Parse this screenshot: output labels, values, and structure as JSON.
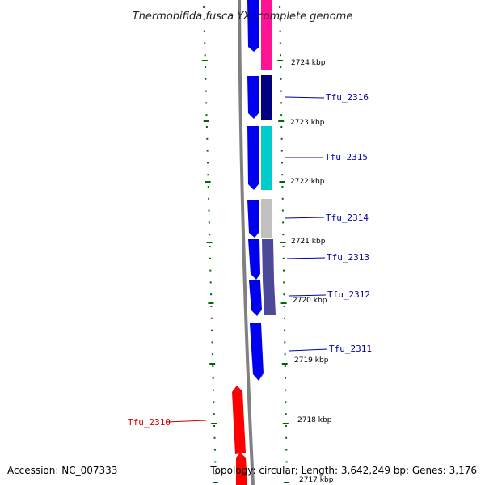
{
  "title": "Thermobifida fusca YX, complete genome",
  "accession": "Accession: NC_007333",
  "summary": "Topology: circular; Length: 3,642,249 bp; Genes: 3,176",
  "colors": {
    "strand": "#0000ee",
    "reverse_gene": "#ff0000",
    "tick": "#006600",
    "backbone": "#808080",
    "label_blue": "#0000aa",
    "label_red": "#cc0000"
  },
  "scale_labels": [
    "2724 kbp",
    "2723 kbp",
    "2722 kbp",
    "2721 kbp",
    "2720 kbp",
    "2719 kbp",
    "2718 kbp",
    "2717 kbp"
  ],
  "genes": [
    {
      "label": "Tfu_2316",
      "side": "right",
      "color": "#000080"
    },
    {
      "label": "Tfu_2315",
      "side": "right",
      "color": "#00cccc"
    },
    {
      "label": "Tfu_2314",
      "side": "right",
      "color": "#c0c0c0"
    },
    {
      "label": "Tfu_2313",
      "side": "right",
      "color": "#4a4a99"
    },
    {
      "label": "Tfu_2312",
      "side": "right",
      "color": "#4a4a99"
    },
    {
      "label": "Tfu_2311",
      "side": "right",
      "color": ""
    },
    {
      "label": "Tfu_2310",
      "side": "left",
      "color": ""
    }
  ],
  "top_gene_color": "#ff1493"
}
